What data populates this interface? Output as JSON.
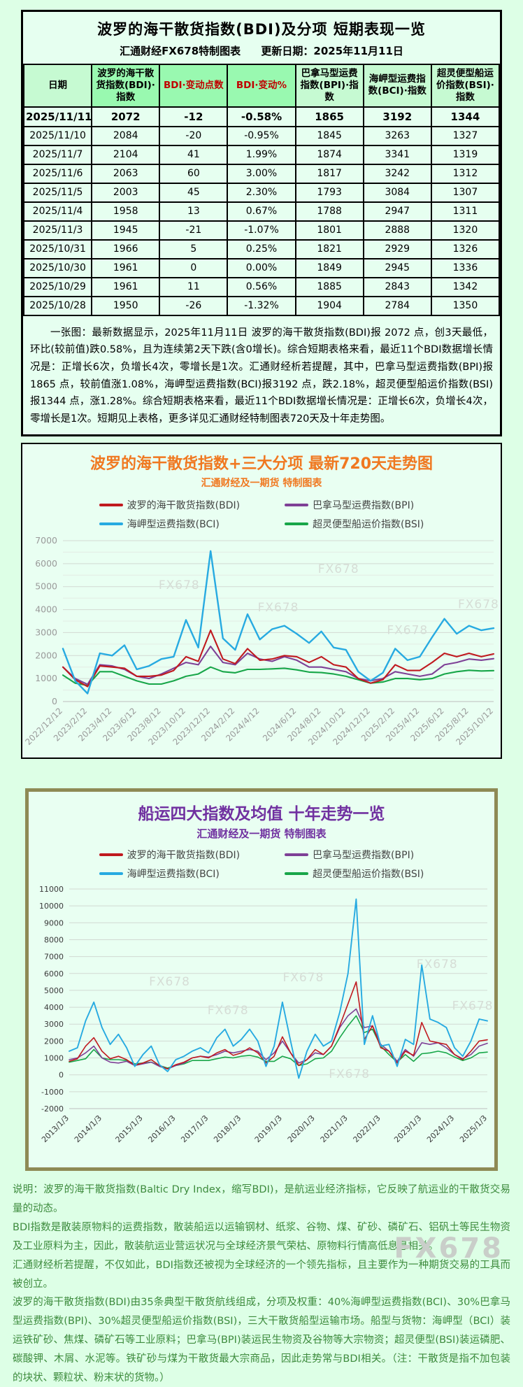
{
  "page": {
    "watermark": "FX678",
    "background_color": "#ddffe6"
  },
  "summary_table": {
    "title": "波罗的海干散货指数(BDI)及分项 短期表现一览",
    "subtitle_left": "汇通财经FX678特制图表",
    "subtitle_right": "更新日期：2025年11月11日",
    "columns": [
      "日期",
      "波罗的海干散货指数(BDI)·指数",
      "BDI·变动点数",
      "BDI·变动%",
      "巴拿马型运费指数(BPI)·指数",
      "海岬型运费指数(BCI)·指数",
      "超灵便型船运价指数(BSI)·指数"
    ],
    "strong_green_columns": [
      1,
      2,
      3
    ],
    "red_columns": [
      2,
      3
    ],
    "rows": [
      [
        "2025/11/11",
        "2072",
        "-12",
        "-0.58%",
        "1865",
        "3192",
        "1344"
      ],
      [
        "2025/11/10",
        "2084",
        "-20",
        "-0.95%",
        "1845",
        "3263",
        "1327"
      ],
      [
        "2025/11/7",
        "2104",
        "41",
        "1.99%",
        "1874",
        "3341",
        "1319"
      ],
      [
        "2025/11/6",
        "2063",
        "60",
        "3.00%",
        "1817",
        "3242",
        "1312"
      ],
      [
        "2025/11/5",
        "2003",
        "45",
        "2.30%",
        "1793",
        "3084",
        "1307"
      ],
      [
        "2025/11/4",
        "1958",
        "13",
        "0.67%",
        "1788",
        "2947",
        "1311"
      ],
      [
        "2025/11/3",
        "1945",
        "-21",
        "-1.07%",
        "1801",
        "2888",
        "1320"
      ],
      [
        "2025/10/31",
        "1966",
        "5",
        "0.25%",
        "1821",
        "2929",
        "1326"
      ],
      [
        "2025/10/30",
        "1961",
        "0",
        "0.00%",
        "1849",
        "2945",
        "1336"
      ],
      [
        "2025/10/29",
        "1961",
        "11",
        "0.56%",
        "1885",
        "2843",
        "1342"
      ],
      [
        "2025/10/28",
        "1950",
        "-26",
        "-1.32%",
        "1904",
        "2784",
        "1350"
      ]
    ],
    "note": "一张图：最新数据显示，2025年11月11日 波罗的海干散货指数(BDI)报 2072 点，创3天最低，环比(较前值)跌0.58%，且为连续第2天下跌(含0增长)。综合短期表格来看，最近11个BDI数据增长情况是：正增长6次，负增长4次，零增长是1次。汇通财经析若提醒，其中，巴拿马型运费指数(BPI)报1865 点，较前值涨1.08%，海岬型运费指数(BCI)报3192 点，跌2.18%，超灵便型船运价指数(BSI)报1344 点，涨1.28%。综合短期表格来看，最近11个BDI数据增长情况是：正增长6次，负增长4次，零增长是1次。短期见上表格，更多详见汇通财经特制图表720天及十年走势图。"
  },
  "chart_data": [
    {
      "type": "line",
      "title": "波罗的海干散货指数+三大分项  最新720天走势图",
      "subtitle": "汇通财经及一期货  特制图表",
      "title_color": "#f07820",
      "grid": true,
      "legend_position": "top",
      "ylim": [
        0,
        7000
      ],
      "ytick_step": 1000,
      "watermark": "FX678",
      "xticklabels": [
        "2022/12/12",
        "2023/2/12",
        "2023/4/12",
        "2023/6/12",
        "2023/8/12",
        "2023/10/12",
        "2023/12/12",
        "2024/2/12",
        "2024/4/12",
        "2024/6/12",
        "2024/8/12",
        "2024/10/12",
        "2024/12/12",
        "2025/2/12",
        "2025/4/12",
        "2025/6/12",
        "2025/8/12",
        "2025/10/12"
      ],
      "x_is_monthly_samples": "2022/12 - 2025/11",
      "series": [
        {
          "name": "波罗的海干散货指数(BDI)",
          "color": "#c0191f",
          "values": [
            1500,
            950,
            650,
            1550,
            1500,
            1450,
            1100,
            1100,
            1150,
            1350,
            1950,
            1750,
            3100,
            1850,
            1650,
            2300,
            1800,
            1850,
            2000,
            1950,
            1700,
            1950,
            1600,
            1500,
            1000,
            800,
            950,
            1600,
            1350,
            1350,
            1700,
            2100,
            1950,
            2100,
            1950,
            2072
          ]
        },
        {
          "name": "巴拿马型运费指数(BPI)",
          "color": "#7e4096",
          "values": [
            1500,
            1000,
            750,
            1600,
            1550,
            1400,
            1100,
            1000,
            1200,
            1450,
            1700,
            1600,
            2400,
            1700,
            1600,
            2100,
            1850,
            1750,
            1950,
            1800,
            1500,
            1500,
            1400,
            1300,
            1000,
            900,
            1000,
            1300,
            1200,
            1100,
            1200,
            1600,
            1700,
            1850,
            1800,
            1865
          ]
        },
        {
          "name": "海岬型运费指数(BCI)",
          "color": "#27aae1",
          "values": [
            2300,
            900,
            350,
            2100,
            2000,
            2450,
            1400,
            1550,
            1850,
            1950,
            3550,
            2350,
            6550,
            2750,
            2250,
            3800,
            2700,
            3150,
            3300,
            2950,
            2550,
            3050,
            2350,
            2250,
            1300,
            900,
            1250,
            2300,
            1800,
            1950,
            2800,
            3600,
            2950,
            3300,
            3100,
            3192
          ]
        },
        {
          "name": "超灵便型船运价指数(BSI)",
          "color": "#18a649",
          "values": [
            1150,
            800,
            700,
            1300,
            1300,
            1100,
            900,
            760,
            760,
            900,
            1100,
            1200,
            1500,
            1300,
            1250,
            1400,
            1400,
            1420,
            1450,
            1380,
            1280,
            1260,
            1200,
            1100,
            950,
            800,
            850,
            1000,
            1000,
            950,
            1000,
            1200,
            1300,
            1360,
            1330,
            1344
          ]
        }
      ]
    },
    {
      "type": "line",
      "title": "船运四大指数及均值 十年走势一览",
      "subtitle": "汇通财经及一期货 特制图表",
      "title_color": "#7030a0",
      "grid": true,
      "legend_position": "top",
      "ylim": [
        -2000,
        11000
      ],
      "ytick_step": 1000,
      "watermark": "FX678",
      "xticklabels": [
        "2013/1/3",
        "2014/1/3",
        "2015/1/3",
        "2016/1/3",
        "2017/1/3",
        "2018/1/3",
        "2019/1/3",
        "2020/1/3",
        "2021/1/3",
        "2022/1/3",
        "2023/1/3",
        "2024/1/3",
        "2025/1/3"
      ],
      "x_is_quarterly_samples": "2013Q1 - 2025Q4",
      "series": [
        {
          "name": "波罗的海干散货指数(BDI)",
          "color": "#c0191f",
          "values": [
            800,
            950,
            1700,
            2200,
            1400,
            950,
            1100,
            900,
            570,
            700,
            900,
            550,
            350,
            600,
            750,
            1000,
            1100,
            1000,
            1300,
            1500,
            1150,
            1300,
            1600,
            1300,
            700,
            1100,
            2250,
            1300,
            550,
            900,
            1500,
            1200,
            1700,
            2900,
            4200,
            5500,
            2100,
            2900,
            1600,
            1400,
            700,
            1400,
            1150,
            3100,
            2000,
            1900,
            1800,
            1200,
            900,
            1400,
            2000,
            2072
          ]
        },
        {
          "name": "巴拿马型运费指数(BPI)",
          "color": "#7e4096",
          "values": [
            900,
            1000,
            1300,
            1700,
            1000,
            750,
            700,
            800,
            550,
            650,
            750,
            500,
            350,
            550,
            700,
            1000,
            1100,
            1050,
            1200,
            1400,
            1300,
            1400,
            1500,
            1400,
            900,
            1300,
            2000,
            1300,
            700,
            900,
            1300,
            1200,
            1700,
            2800,
            3500,
            3900,
            2800,
            2900,
            1800,
            1400,
            800,
            1500,
            1100,
            1900,
            1800,
            1900,
            1600,
            1200,
            950,
            1200,
            1700,
            1865
          ]
        },
        {
          "name": "海岬型运费指数(BCI)",
          "color": "#27aae1",
          "values": [
            1400,
            1600,
            3200,
            4300,
            2800,
            1800,
            2400,
            1600,
            500,
            1200,
            1700,
            600,
            200,
            900,
            1100,
            1400,
            1600,
            1300,
            2200,
            2700,
            1700,
            2100,
            2700,
            2000,
            500,
            1700,
            4300,
            2000,
            -200,
            1400,
            2400,
            1700,
            2000,
            3700,
            6000,
            10400,
            1800,
            3500,
            1700,
            1800,
            500,
            2100,
            1800,
            6500,
            3300,
            3100,
            2800,
            1600,
            1100,
            2000,
            3300,
            3192
          ]
        },
        {
          "name": "超灵便型船运价指数(BSI)",
          "color": "#18a649",
          "values": [
            750,
            850,
            950,
            1500,
            1000,
            900,
            900,
            850,
            650,
            700,
            750,
            550,
            400,
            550,
            650,
            850,
            850,
            850,
            950,
            1050,
            1000,
            1100,
            1150,
            1050,
            800,
            800,
            1100,
            950,
            550,
            650,
            950,
            1000,
            1400,
            2200,
            2900,
            3500,
            2500,
            2700,
            1700,
            1200,
            750,
            1200,
            800,
            1250,
            1300,
            1400,
            1300,
            1050,
            850,
            1000,
            1300,
            1344
          ]
        }
      ]
    }
  ],
  "footer": {
    "paragraphs": [
      "说明：波罗的海干散货指数(Baltic Dry Index，缩写BDI)，是航运业经济指标，它反映了航运业的干散货交易量的动态。",
      "BDI指数是散装原物料的运费指数，散装船运以运输钢材、纸浆、谷物、煤、矿砂、磷矿石、铝矾土等民生物资及工业原料为主，因此，散装航运业营运状况与全球经济景气荣枯、原物料行情高低息息相关。",
      "汇通财经析若提醒，不仅如此，BDI指数还被视为全球经济的一个领先指标，且主要作为一种期货交易的工具而被创立。",
      "波罗的海干散货指数(BDI)由35条典型干散货航线组成，分项及权重：40%海岬型运费指数(BCI)、30%巴拿马型运费指数(BPI)、30%超灵便型船运价指数(BSI)，三大干散货船型运输市场。船型与货物：海岬型（BCI）装运铁矿砂、焦煤、磷矿石等工业原料；巴拿马(BPI)装运民生物资及谷物等大宗物资；超灵便型(BSI)装运磷肥、碳酸钾、木屑、水泥等。铁矿砂与煤为干散货最大宗商品，因此走势常与BDI相关。（注：干散货是指不加包装的块状、颗粒状、粉末状的货物。）"
    ]
  }
}
